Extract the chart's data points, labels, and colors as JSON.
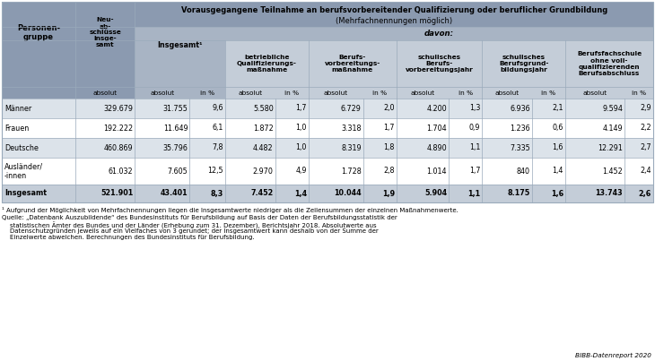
{
  "title_line1": "Vorausgegangene Teilnahme an berufsvorbereitender Qualifizierung oder beruflicher Grundbildung",
  "title_line2": "(Mehrfachnennungen möglich)",
  "davon_label": "davon:",
  "rows": [
    {
      "group": "Männer",
      "neuabschluesse": "329.679",
      "insgesamt_abs": "31.755",
      "insgesamt_pct": "9,6",
      "betriebliche_abs": "5.580",
      "betriebliche_pct": "1,7",
      "berufsvorb_abs": "6.729",
      "berufsvorb_pct": "2,0",
      "schul_berufs_abs": "4.200",
      "schul_berufs_pct": "1,3",
      "schul_grund_abs": "6.936",
      "schul_grund_pct": "2,1",
      "bfs_abs": "9.594",
      "bfs_pct": "2,9",
      "bold": false
    },
    {
      "group": "Frauen",
      "neuabschluesse": "192.222",
      "insgesamt_abs": "11.649",
      "insgesamt_pct": "6,1",
      "betriebliche_abs": "1.872",
      "betriebliche_pct": "1,0",
      "berufsvorb_abs": "3.318",
      "berufsvorb_pct": "1,7",
      "schul_berufs_abs": "1.704",
      "schul_berufs_pct": "0,9",
      "schul_grund_abs": "1.236",
      "schul_grund_pct": "0,6",
      "bfs_abs": "4.149",
      "bfs_pct": "2,2",
      "bold": false
    },
    {
      "group": "Deutsche",
      "neuabschluesse": "460.869",
      "insgesamt_abs": "35.796",
      "insgesamt_pct": "7,8",
      "betriebliche_abs": "4.482",
      "betriebliche_pct": "1,0",
      "berufsvorb_abs": "8.319",
      "berufsvorb_pct": "1,8",
      "schul_berufs_abs": "4.890",
      "schul_berufs_pct": "1,1",
      "schul_grund_abs": "7.335",
      "schul_grund_pct": "1,6",
      "bfs_abs": "12.291",
      "bfs_pct": "2,7",
      "bold": false
    },
    {
      "group": "Ausländer/\n-innen",
      "neuabschluesse": "61.032",
      "insgesamt_abs": "7.605",
      "insgesamt_pct": "12,5",
      "betriebliche_abs": "2.970",
      "betriebliche_pct": "4,9",
      "berufsvorb_abs": "1.728",
      "berufsvorb_pct": "2,8",
      "schul_berufs_abs": "1.014",
      "schul_berufs_pct": "1,7",
      "schul_grund_abs": "840",
      "schul_grund_pct": "1,4",
      "bfs_abs": "1.452",
      "bfs_pct": "2,4",
      "bold": false
    },
    {
      "group": "Insgesamt",
      "neuabschluesse": "521.901",
      "insgesamt_abs": "43.401",
      "insgesamt_pct": "8,3",
      "betriebliche_abs": "7.452",
      "betriebliche_pct": "1,4",
      "berufsvorb_abs": "10.044",
      "berufsvorb_pct": "1,9",
      "schul_berufs_abs": "5.904",
      "schul_berufs_pct": "1,1",
      "schul_grund_abs": "8.175",
      "schul_grund_pct": "1,6",
      "bfs_abs": "13.743",
      "bfs_pct": "2,6",
      "bold": true
    }
  ],
  "footnote1": "¹ Aufgrund der Möglichkeit von Mehrfachnennungen liegen die Insgesamtwerte niedriger als die Zeilensummen der einzelnen Maßnahmenwerte.",
  "source_line1": "Quelle: „Datenbank Auszubildende“ des Bundesinstituts für Berufsbildung auf Basis der Daten der Berufsbildungsstatistik der",
  "source_line2": "    statistischen Ämter des Bundes und der Länder (Erhebung zum 31. Dezember), Berichtsjahr 2018. Absolutwerte aus",
  "source_line3": "    Datenschutzgründen jeweils auf ein Vielfaches von 3 gerundet; der Insgesamtwert kann deshalb von der Summe der",
  "source_line4": "    Einzelwerte abweichen. Berechnungen des Bundesinstituts für Berufsbildung.",
  "bibb_label": "BIBB-Datenreport 2020",
  "c_dark": "#8b9ab0",
  "c_medium": "#a8b4c4",
  "c_light": "#c4cdd8",
  "c_even": "#dce3ea",
  "c_odd": "#ffffff",
  "c_total": "#c4cdd8",
  "c_border": "#9aaabb"
}
